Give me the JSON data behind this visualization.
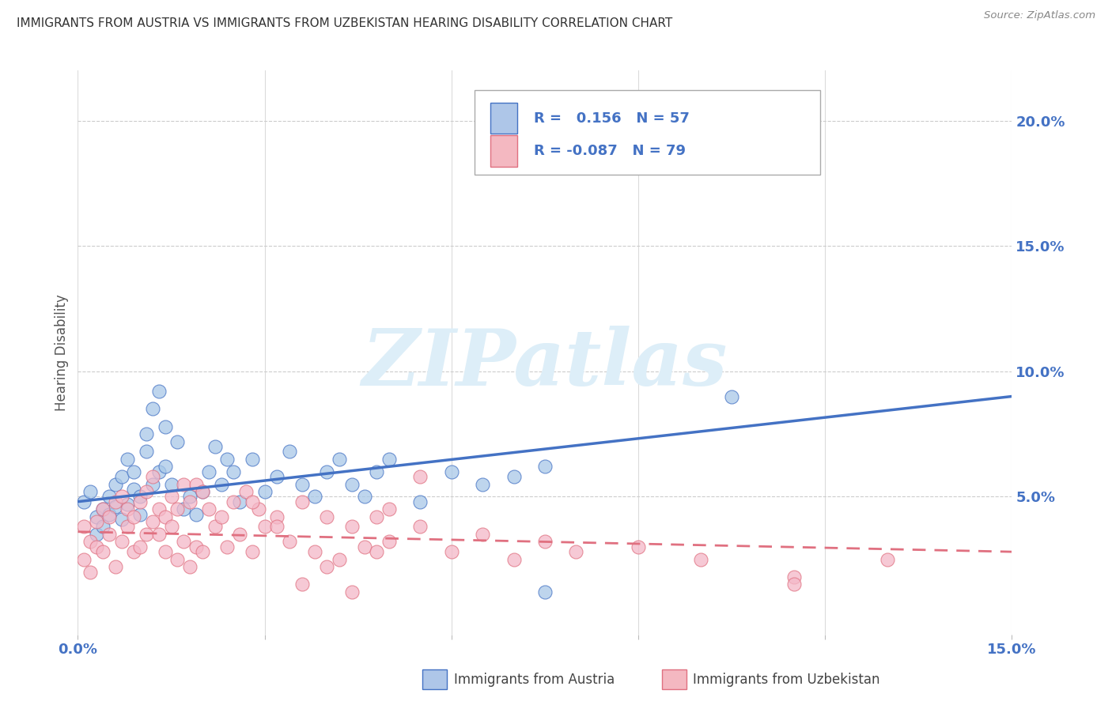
{
  "title": "IMMIGRANTS FROM AUSTRIA VS IMMIGRANTS FROM UZBEKISTAN HEARING DISABILITY CORRELATION CHART",
  "source": "Source: ZipAtlas.com",
  "ylabel": "Hearing Disability",
  "r_austria": 0.156,
  "n_austria": 57,
  "r_uzbekistan": -0.087,
  "n_uzbekistan": 79,
  "color_austria": "#a8c8e8",
  "color_uzbekistan": "#f4b8c8",
  "color_austria_line": "#4472c4",
  "color_uzbekistan_line": "#e07080",
  "color_axis_labels": "#4472c4",
  "background_color": "#ffffff",
  "grid_color": "#cccccc",
  "xlim": [
    0.0,
    0.15
  ],
  "ylim": [
    -0.005,
    0.22
  ],
  "yticks_right": [
    0.05,
    0.1,
    0.15,
    0.2
  ],
  "ytick_labels_right": [
    "5.0%",
    "10.0%",
    "15.0%",
    "20.0%"
  ],
  "xticks": [
    0.0,
    0.03,
    0.06,
    0.09,
    0.12,
    0.15
  ],
  "watermark": "ZIPatlas",
  "watermark_color": "#ddeef8",
  "legend_box_color_austria": "#aec6e8",
  "legend_box_color_uzbekistan": "#f4b8c1",
  "austria_scatter_x": [
    0.001,
    0.002,
    0.003,
    0.003,
    0.004,
    0.004,
    0.005,
    0.005,
    0.006,
    0.006,
    0.007,
    0.007,
    0.008,
    0.008,
    0.009,
    0.009,
    0.01,
    0.01,
    0.011,
    0.011,
    0.012,
    0.012,
    0.013,
    0.013,
    0.014,
    0.014,
    0.015,
    0.016,
    0.017,
    0.018,
    0.019,
    0.02,
    0.021,
    0.022,
    0.023,
    0.024,
    0.025,
    0.026,
    0.028,
    0.03,
    0.032,
    0.034,
    0.036,
    0.038,
    0.04,
    0.042,
    0.044,
    0.046,
    0.048,
    0.05,
    0.055,
    0.06,
    0.065,
    0.07,
    0.075,
    0.105,
    0.075
  ],
  "austria_scatter_y": [
    0.048,
    0.052,
    0.035,
    0.042,
    0.038,
    0.045,
    0.05,
    0.043,
    0.046,
    0.055,
    0.041,
    0.058,
    0.047,
    0.065,
    0.053,
    0.06,
    0.05,
    0.043,
    0.068,
    0.075,
    0.055,
    0.085,
    0.06,
    0.092,
    0.078,
    0.062,
    0.055,
    0.072,
    0.045,
    0.05,
    0.043,
    0.052,
    0.06,
    0.07,
    0.055,
    0.065,
    0.06,
    0.048,
    0.065,
    0.052,
    0.058,
    0.068,
    0.055,
    0.05,
    0.06,
    0.065,
    0.055,
    0.05,
    0.06,
    0.065,
    0.048,
    0.06,
    0.055,
    0.058,
    0.062,
    0.09,
    0.012
  ],
  "uzbekistan_scatter_x": [
    0.001,
    0.001,
    0.002,
    0.002,
    0.003,
    0.003,
    0.004,
    0.004,
    0.005,
    0.005,
    0.006,
    0.006,
    0.007,
    0.007,
    0.008,
    0.008,
    0.009,
    0.009,
    0.01,
    0.01,
    0.011,
    0.011,
    0.012,
    0.012,
    0.013,
    0.013,
    0.014,
    0.014,
    0.015,
    0.015,
    0.016,
    0.016,
    0.017,
    0.017,
    0.018,
    0.018,
    0.019,
    0.019,
    0.02,
    0.02,
    0.021,
    0.022,
    0.023,
    0.024,
    0.025,
    0.026,
    0.027,
    0.028,
    0.029,
    0.03,
    0.032,
    0.034,
    0.036,
    0.038,
    0.04,
    0.042,
    0.044,
    0.046,
    0.048,
    0.05,
    0.055,
    0.06,
    0.065,
    0.07,
    0.075,
    0.08,
    0.09,
    0.1,
    0.115,
    0.13,
    0.05,
    0.055,
    0.028,
    0.032,
    0.036,
    0.04,
    0.044,
    0.048,
    0.115
  ],
  "uzbekistan_scatter_y": [
    0.025,
    0.038,
    0.02,
    0.032,
    0.03,
    0.04,
    0.028,
    0.045,
    0.035,
    0.042,
    0.022,
    0.048,
    0.032,
    0.05,
    0.038,
    0.045,
    0.028,
    0.042,
    0.03,
    0.048,
    0.035,
    0.052,
    0.04,
    0.058,
    0.045,
    0.035,
    0.042,
    0.028,
    0.05,
    0.038,
    0.045,
    0.025,
    0.055,
    0.032,
    0.048,
    0.022,
    0.055,
    0.03,
    0.052,
    0.028,
    0.045,
    0.038,
    0.042,
    0.03,
    0.048,
    0.035,
    0.052,
    0.028,
    0.045,
    0.038,
    0.042,
    0.032,
    0.048,
    0.028,
    0.042,
    0.025,
    0.038,
    0.03,
    0.042,
    0.032,
    0.038,
    0.028,
    0.035,
    0.025,
    0.032,
    0.028,
    0.03,
    0.025,
    0.018,
    0.025,
    0.045,
    0.058,
    0.048,
    0.038,
    0.015,
    0.022,
    0.012,
    0.028,
    0.015
  ]
}
